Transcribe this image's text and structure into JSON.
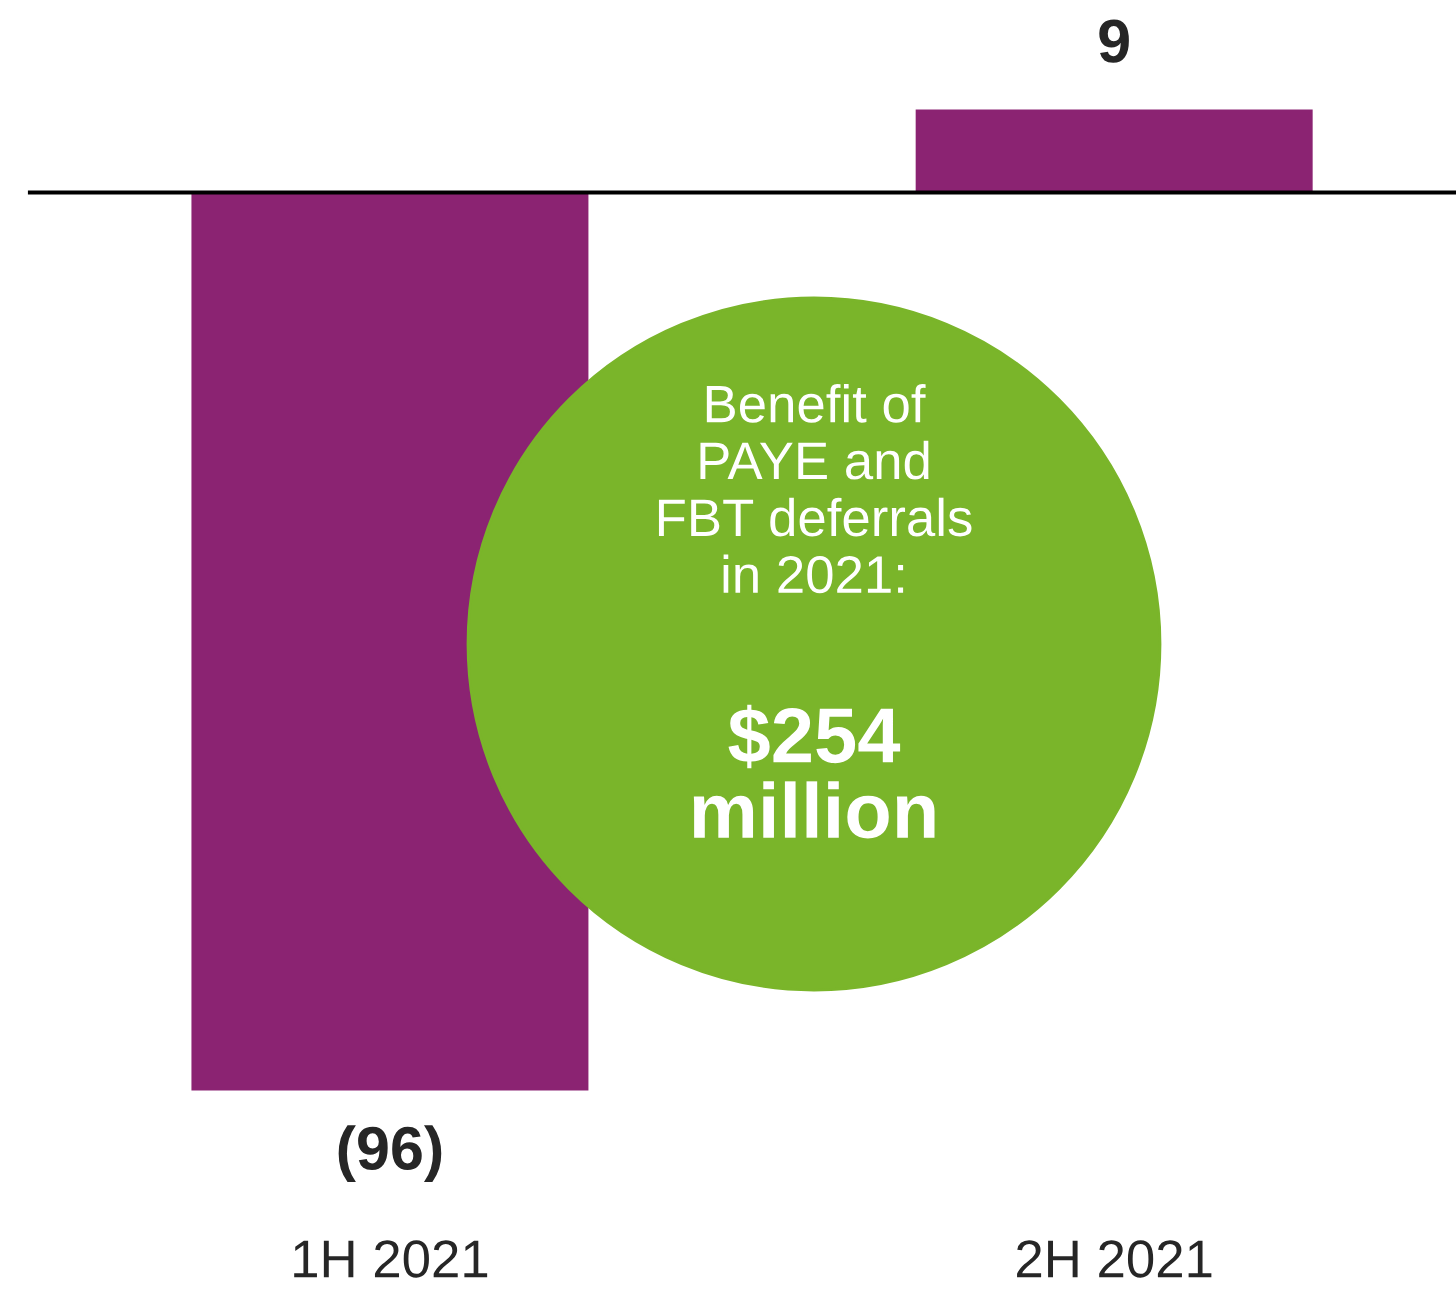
{
  "chart_data": {
    "type": "bar",
    "categories": [
      "1H 2021",
      "2H 2021"
    ],
    "values": [
      -96,
      9
    ],
    "value_labels": [
      "(96)",
      "9"
    ],
    "color": "#8b2372",
    "tick_labels": "x",
    "grid": false,
    "legend": false,
    "annotations": [
      "Benefit of\nPAYE and\nFBT deferrals\nin 2021:",
      "$254\nmillion"
    ]
  }
}
